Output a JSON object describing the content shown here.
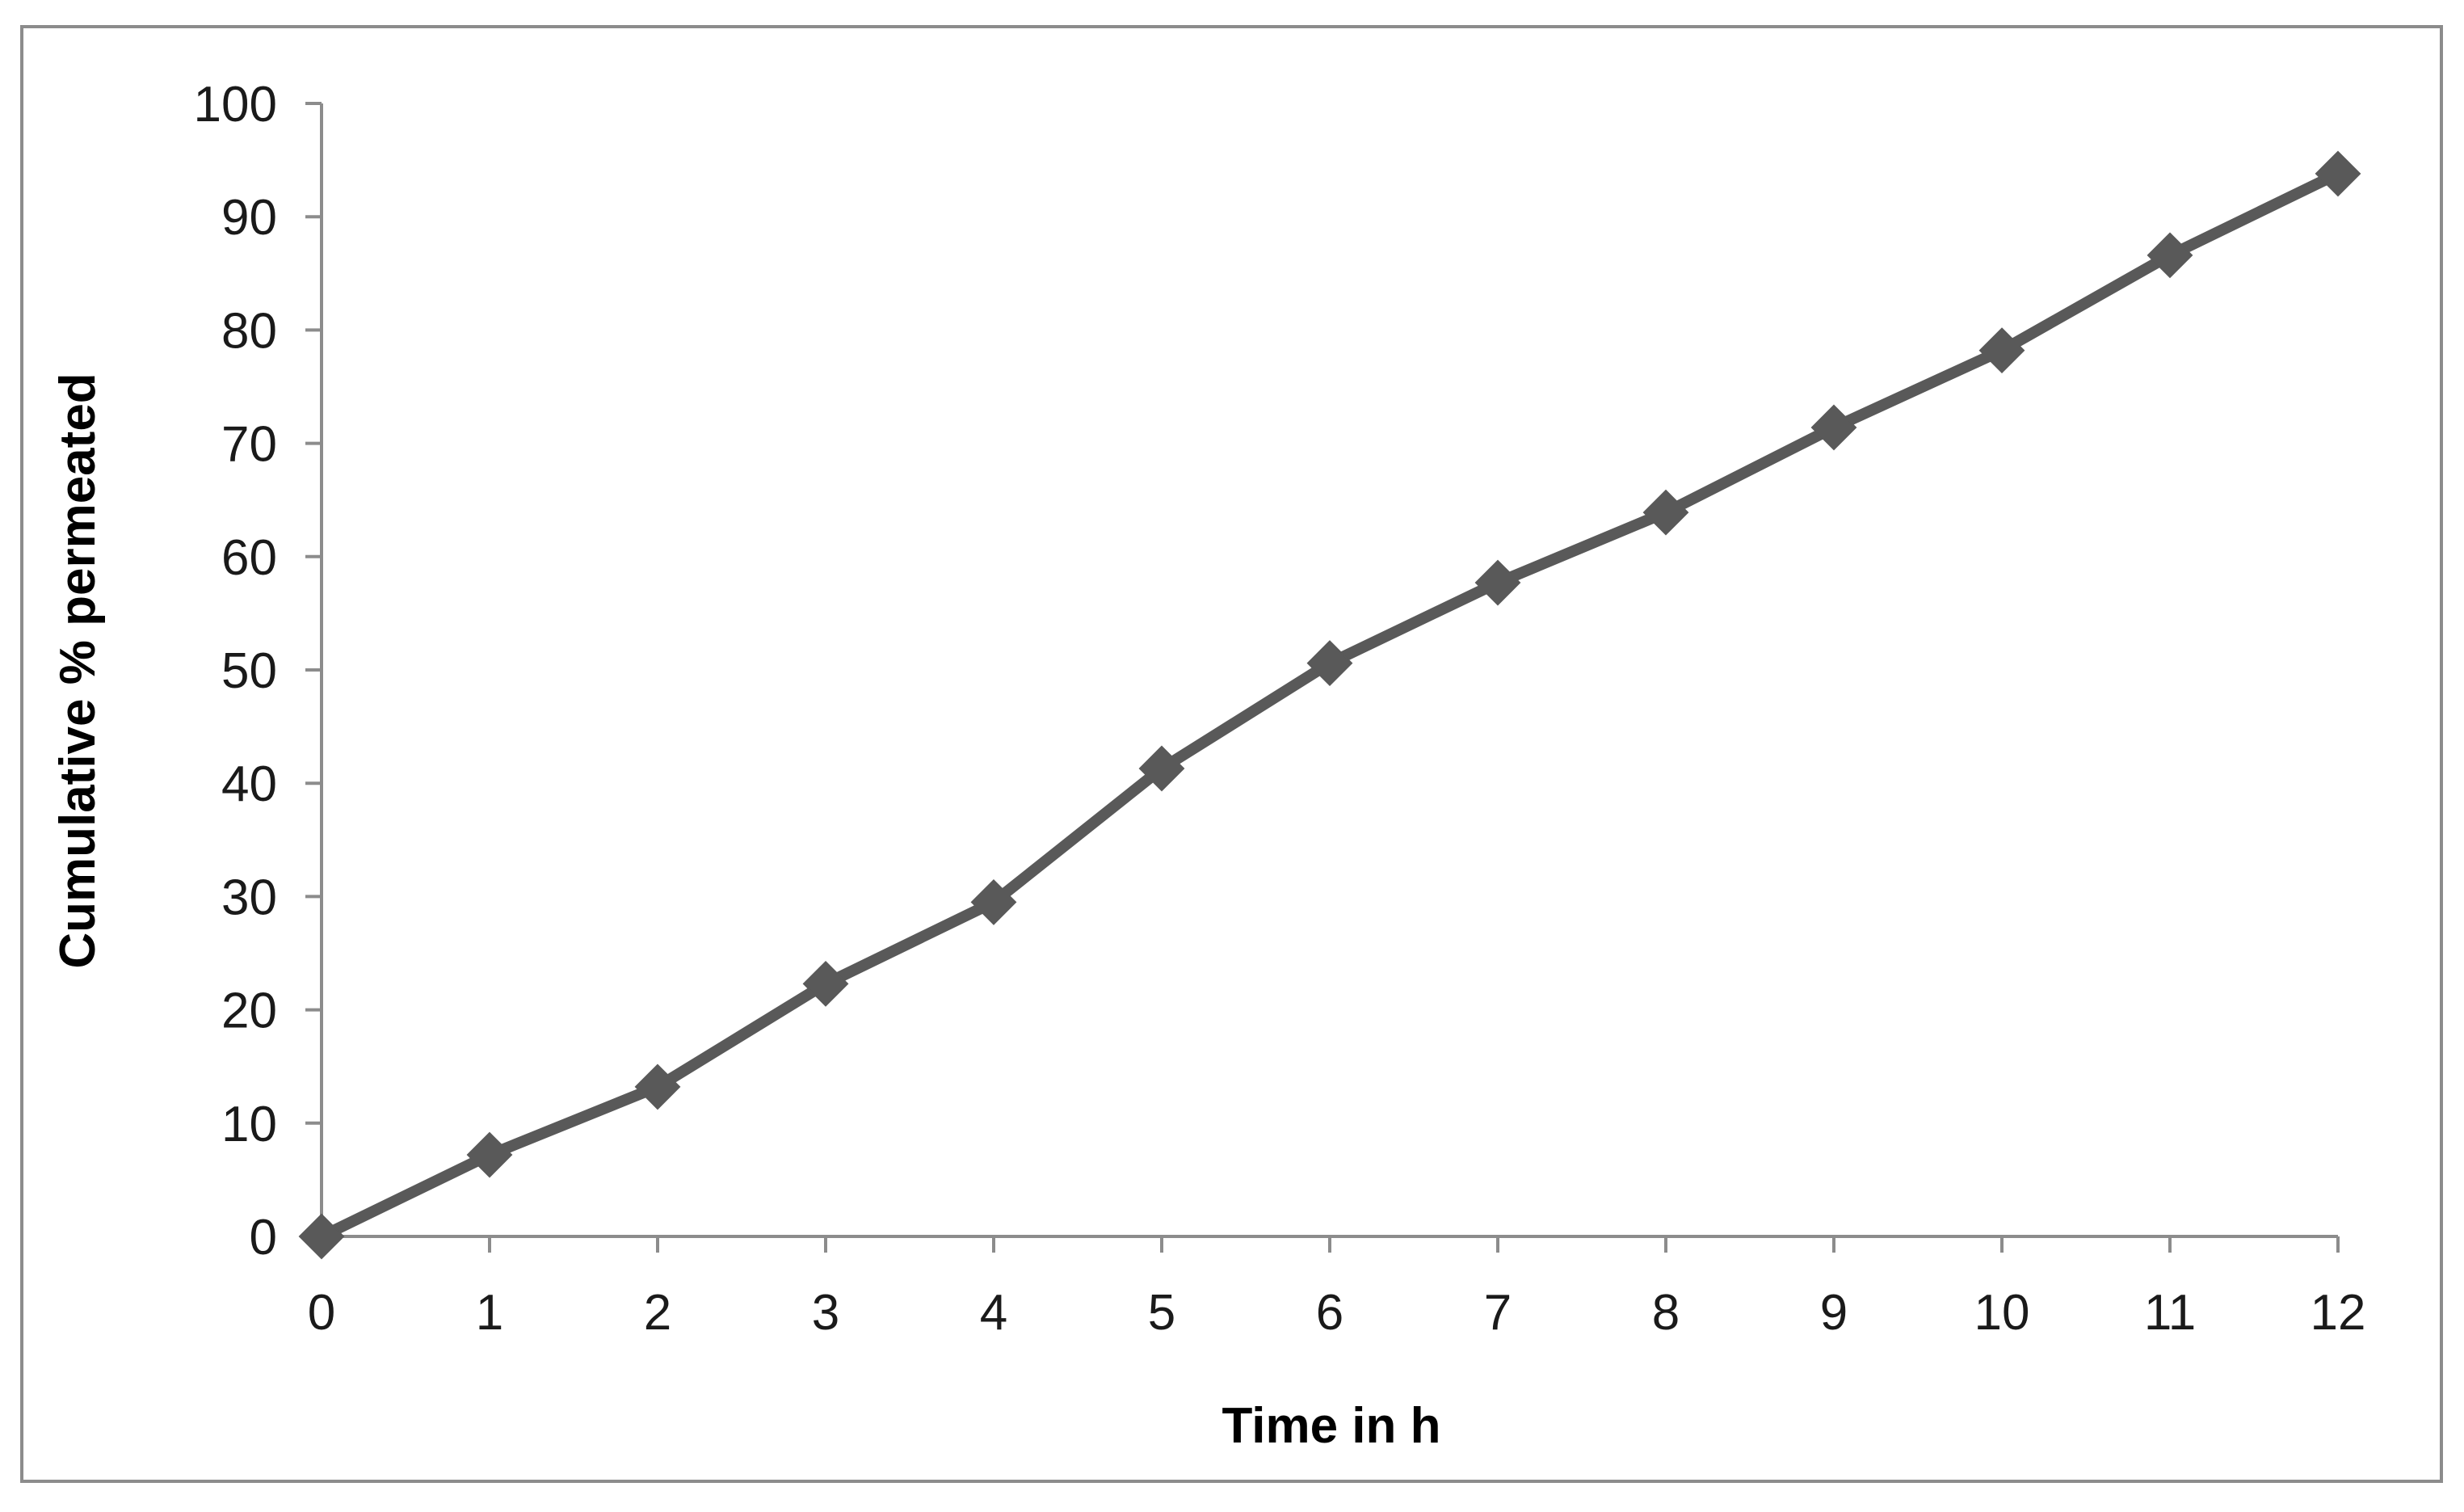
{
  "chart_data": {
    "type": "line",
    "title": "",
    "xlabel": "Time in h",
    "ylabel": "Cumulative % permeated",
    "xlim": [
      0,
      12
    ],
    "ylim": [
      0,
      100
    ],
    "x_ticks": [
      0,
      1,
      2,
      3,
      4,
      5,
      6,
      7,
      8,
      9,
      10,
      11,
      12
    ],
    "y_ticks": [
      0,
      10,
      20,
      30,
      40,
      50,
      60,
      70,
      80,
      90,
      100
    ],
    "grid": false,
    "legend": "none",
    "series": [
      {
        "marker": "diamond",
        "color": "#595959",
        "x": [
          0,
          1,
          2,
          3,
          4,
          5,
          6,
          7,
          8,
          9,
          10,
          11,
          12
        ],
        "y": [
          0,
          7.2,
          13.2,
          22.3,
          29.5,
          41.3,
          50.6,
          57.7,
          63.9,
          71.4,
          78.2,
          86.6,
          93.8
        ]
      }
    ]
  }
}
